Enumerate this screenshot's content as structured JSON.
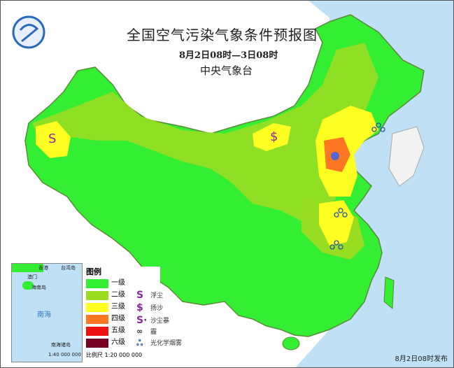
{
  "header": {
    "title": "全国空气污染气象条件预报图",
    "valid_period": "8月2日08时—3日08时",
    "issuer": "中央气象台"
  },
  "legend": {
    "title": "图例",
    "levels": [
      {
        "label": "一级",
        "color": "#33ee33"
      },
      {
        "label": "二级",
        "color": "#99dd22"
      },
      {
        "label": "三级",
        "color": "#ffff22"
      },
      {
        "label": "四级",
        "color": "#ff7722"
      },
      {
        "label": "五级",
        "color": "#ee1111"
      },
      {
        "label": "六级",
        "color": "#770022"
      }
    ],
    "symbols": [
      {
        "label": "浮尘",
        "icon": "S-dust-icon"
      },
      {
        "label": "扬沙",
        "icon": "dollar-sand-icon"
      },
      {
        "label": "沙尘暴",
        "icon": "sandstorm-icon"
      },
      {
        "label": "霾",
        "icon": "haze-icon"
      },
      {
        "label": "光化学烟雾",
        "icon": "photochemical-smog-icon"
      }
    ],
    "scale": "比例尺  1:20 000 000"
  },
  "inset": {
    "sea": "南海",
    "islands": "南海诸岛",
    "scale": "1:40 000 000",
    "labels": [
      "香港",
      "台湾岛",
      "澳门",
      "海南岛"
    ]
  },
  "footer": {
    "issued": "8月2日08时发布"
  },
  "colors": {
    "sea": "#bfe0f5",
    "background": "#ffffff"
  }
}
